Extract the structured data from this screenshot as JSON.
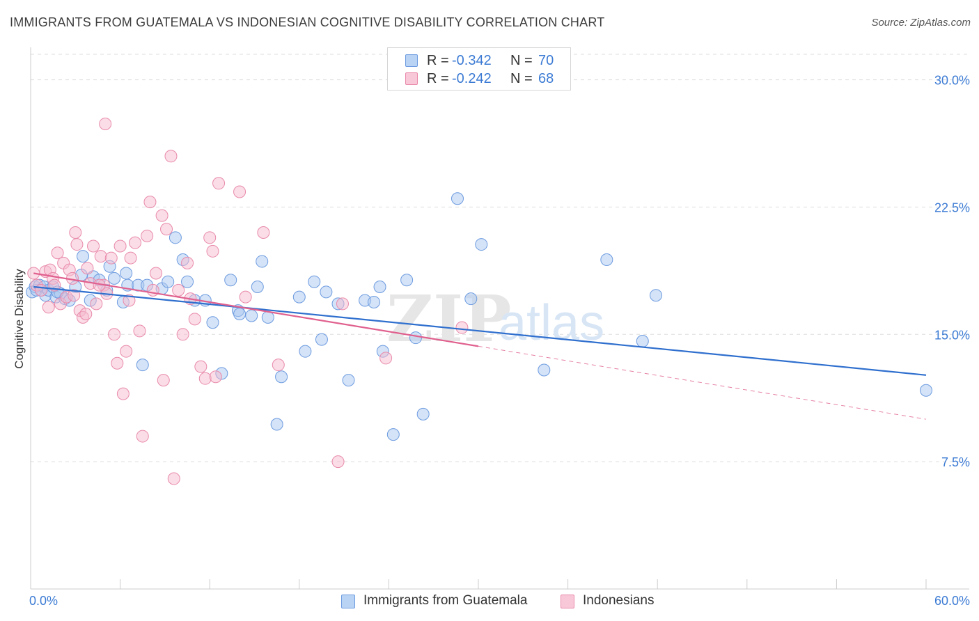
{
  "title": "IMMIGRANTS FROM GUATEMALA VS INDONESIAN COGNITIVE DISABILITY CORRELATION CHART",
  "source": "Source: ZipAtlas.com",
  "watermark": {
    "zip": "ZIP",
    "atlas": "atlas"
  },
  "legend_top": [
    {
      "r_label": "R = ",
      "r_value": "-0.342",
      "n_label": "N = ",
      "n_value": "70"
    },
    {
      "r_label": "R = ",
      "r_value": "-0.242",
      "n_label": "N = ",
      "n_value": "68"
    }
  ],
  "colors": {
    "blue_fill": "#a9c8f0",
    "blue_stroke": "#6d9be0",
    "blue_line": "#2f6fce",
    "pink_fill": "#f6bcd0",
    "pink_stroke": "#e98aab",
    "pink_line": "#e0608e",
    "axis_text": "#3c7bd4",
    "grid": "#dddddd"
  },
  "chart_data": {
    "type": "scatter",
    "title": "IMMIGRANTS FROM GUATEMALA VS INDONESIAN COGNITIVE DISABILITY CORRELATION CHART",
    "xlabel": "",
    "ylabel": "Cognitive Disability",
    "xlim": [
      0,
      60
    ],
    "ylim": [
      0,
      31.5
    ],
    "x_tick_labels": [
      "0.0%",
      "60.0%"
    ],
    "y_ticks": [
      7.5,
      15.0,
      22.5,
      30.0
    ],
    "y_tick_labels": [
      "7.5%",
      "15.0%",
      "22.5%",
      "30.0%"
    ],
    "grid": "horizontal dashed",
    "legend_position": "top-center",
    "series": [
      {
        "name": "Immigrants from Guatemala",
        "R": -0.342,
        "N": 70,
        "trend": {
          "x": [
            0.2,
            60
          ],
          "y": [
            17.8,
            12.6
          ]
        },
        "points": [
          [
            0.1,
            17.5
          ],
          [
            0.3,
            17.8
          ],
          [
            0.4,
            17.6
          ],
          [
            0.6,
            17.9
          ],
          [
            0.7,
            17.6
          ],
          [
            0.9,
            17.8
          ],
          [
            1.0,
            17.3
          ],
          [
            1.2,
            17.6
          ],
          [
            1.5,
            17.8
          ],
          [
            1.7,
            17.2
          ],
          [
            2.0,
            17.4
          ],
          [
            2.3,
            17.1
          ],
          [
            2.6,
            17.0
          ],
          [
            3.0,
            17.8
          ],
          [
            3.4,
            18.5
          ],
          [
            3.5,
            19.6
          ],
          [
            4.2,
            18.4
          ],
          [
            4.6,
            18.2
          ],
          [
            5.1,
            17.6
          ],
          [
            5.3,
            19.0
          ],
          [
            5.6,
            18.3
          ],
          [
            6.2,
            16.9
          ],
          [
            6.5,
            17.9
          ],
          [
            6.4,
            18.6
          ],
          [
            7.2,
            17.9
          ],
          [
            7.8,
            17.9
          ],
          [
            8.8,
            17.7
          ],
          [
            9.2,
            18.1
          ],
          [
            9.7,
            20.7
          ],
          [
            10.2,
            19.4
          ],
          [
            10.5,
            18.1
          ],
          [
            11.0,
            17.0
          ],
          [
            11.7,
            17.0
          ],
          [
            12.2,
            15.7
          ],
          [
            12.8,
            12.7
          ],
          [
            13.4,
            18.2
          ],
          [
            13.9,
            16.4
          ],
          [
            14.0,
            16.2
          ],
          [
            14.8,
            16.1
          ],
          [
            15.2,
            17.8
          ],
          [
            15.5,
            19.3
          ],
          [
            15.9,
            16.0
          ],
          [
            16.5,
            9.7
          ],
          [
            16.8,
            12.5
          ],
          [
            18.0,
            17.2
          ],
          [
            18.4,
            14.0
          ],
          [
            19.0,
            18.1
          ],
          [
            19.5,
            14.7
          ],
          [
            19.8,
            17.5
          ],
          [
            20.6,
            16.8
          ],
          [
            21.3,
            12.3
          ],
          [
            22.4,
            17.0
          ],
          [
            23.0,
            16.9
          ],
          [
            23.4,
            17.8
          ],
          [
            23.6,
            14.0
          ],
          [
            24.3,
            9.1
          ],
          [
            25.8,
            14.8
          ],
          [
            25.2,
            18.2
          ],
          [
            26.3,
            10.3
          ],
          [
            28.6,
            23.0
          ],
          [
            29.5,
            17.1
          ],
          [
            30.2,
            20.3
          ],
          [
            34.4,
            12.9
          ],
          [
            38.6,
            19.4
          ],
          [
            41.0,
            14.6
          ],
          [
            41.9,
            17.3
          ],
          [
            60.0,
            11.7
          ],
          [
            1.8,
            17.5
          ],
          [
            4.0,
            17.0
          ],
          [
            7.5,
            13.2
          ]
        ]
      },
      {
        "name": "Indonesians",
        "R": -0.242,
        "N": 68,
        "trend": {
          "x": [
            0.2,
            30.0
          ],
          "y": [
            18.6,
            14.3
          ]
        },
        "trend_extension": {
          "x": [
            30.0,
            60.0
          ],
          "y": [
            14.3,
            10.0
          ]
        },
        "points": [
          [
            0.2,
            18.6
          ],
          [
            0.4,
            17.9
          ],
          [
            0.7,
            17.6
          ],
          [
            1.0,
            18.7
          ],
          [
            1.3,
            18.8
          ],
          [
            1.5,
            18.3
          ],
          [
            1.6,
            17.9
          ],
          [
            1.8,
            19.8
          ],
          [
            2.0,
            16.8
          ],
          [
            2.2,
            19.2
          ],
          [
            2.4,
            17.2
          ],
          [
            2.6,
            18.8
          ],
          [
            2.8,
            18.3
          ],
          [
            3.0,
            21.0
          ],
          [
            3.1,
            20.3
          ],
          [
            3.3,
            16.4
          ],
          [
            3.5,
            16.0
          ],
          [
            3.8,
            18.9
          ],
          [
            4.0,
            18.0
          ],
          [
            4.2,
            20.2
          ],
          [
            4.4,
            16.8
          ],
          [
            4.7,
            19.6
          ],
          [
            4.9,
            17.9
          ],
          [
            5.1,
            17.4
          ],
          [
            5.4,
            19.5
          ],
          [
            5.6,
            15.0
          ],
          [
            5.8,
            13.3
          ],
          [
            6.0,
            20.2
          ],
          [
            6.2,
            11.5
          ],
          [
            6.4,
            14.0
          ],
          [
            6.7,
            19.5
          ],
          [
            7.0,
            20.4
          ],
          [
            7.3,
            15.2
          ],
          [
            7.5,
            9.0
          ],
          [
            7.8,
            20.8
          ],
          [
            8.0,
            22.8
          ],
          [
            8.2,
            17.6
          ],
          [
            8.4,
            18.6
          ],
          [
            8.8,
            22.0
          ],
          [
            9.1,
            21.2
          ],
          [
            9.4,
            25.5
          ],
          [
            9.6,
            6.5
          ],
          [
            9.9,
            17.6
          ],
          [
            10.2,
            15.0
          ],
          [
            10.5,
            19.2
          ],
          [
            11.0,
            15.9
          ],
          [
            11.4,
            13.1
          ],
          [
            11.7,
            12.4
          ],
          [
            12.0,
            20.7
          ],
          [
            12.2,
            19.9
          ],
          [
            12.6,
            23.9
          ],
          [
            14.0,
            23.4
          ],
          [
            14.4,
            17.2
          ],
          [
            15.6,
            21.0
          ],
          [
            16.6,
            13.2
          ],
          [
            20.6,
            7.5
          ],
          [
            20.9,
            16.8
          ],
          [
            23.8,
            13.6
          ],
          [
            28.9,
            15.4
          ],
          [
            1.2,
            16.6
          ],
          [
            2.9,
            17.3
          ],
          [
            4.6,
            17.9
          ],
          [
            6.6,
            17.0
          ],
          [
            5.0,
            27.4
          ],
          [
            8.9,
            12.3
          ],
          [
            12.4,
            12.5
          ],
          [
            10.7,
            17.1
          ],
          [
            3.7,
            16.2
          ]
        ]
      }
    ]
  }
}
